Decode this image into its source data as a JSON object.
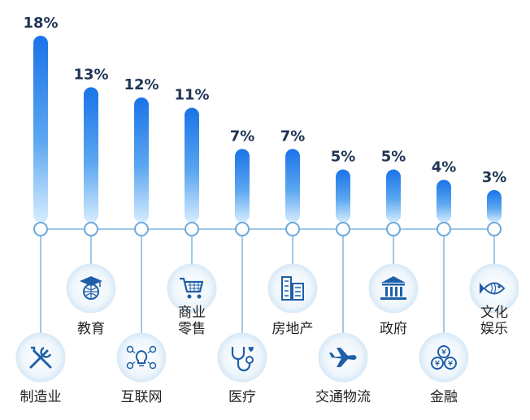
{
  "chart_data": {
    "type": "bar",
    "title": "",
    "categories": [
      "制造业",
      "教育",
      "互联网",
      "商业零售",
      "医疗",
      "房地产",
      "交通物流",
      "政府",
      "金融",
      "文化娱乐"
    ],
    "category_lines": [
      [
        "制造业"
      ],
      [
        "教育"
      ],
      [
        "互联网"
      ],
      [
        "商业",
        "零售"
      ],
      [
        "医疗"
      ],
      [
        "房地产"
      ],
      [
        "交通物流"
      ],
      [
        "政府"
      ],
      [
        "金融"
      ],
      [
        "文化",
        "娱乐"
      ]
    ],
    "values": [
      18,
      13,
      12,
      11,
      7,
      7,
      5,
      5,
      4,
      3
    ],
    "value_labels": [
      "18%",
      "13%",
      "12%",
      "11%",
      "7%",
      "7%",
      "5%",
      "5%",
      "4%",
      "3%"
    ],
    "icons": [
      "tools-icon",
      "graduation-globe-icon",
      "network-lightbulb-icon",
      "shopping-cart-icon",
      "stethoscope-icon",
      "buildings-icon",
      "airplane-icon",
      "government-building-icon",
      "coins-icon",
      "fish-icon"
    ],
    "ylim": [
      0,
      18
    ],
    "colors": {
      "bar_top": "#1a73e8",
      "bar_bottom": "#d6ecff",
      "line": "#9fc9ea",
      "node": "#6fa8d8",
      "icon": "#1f5fa8",
      "circle": "#e9f3fb"
    }
  }
}
